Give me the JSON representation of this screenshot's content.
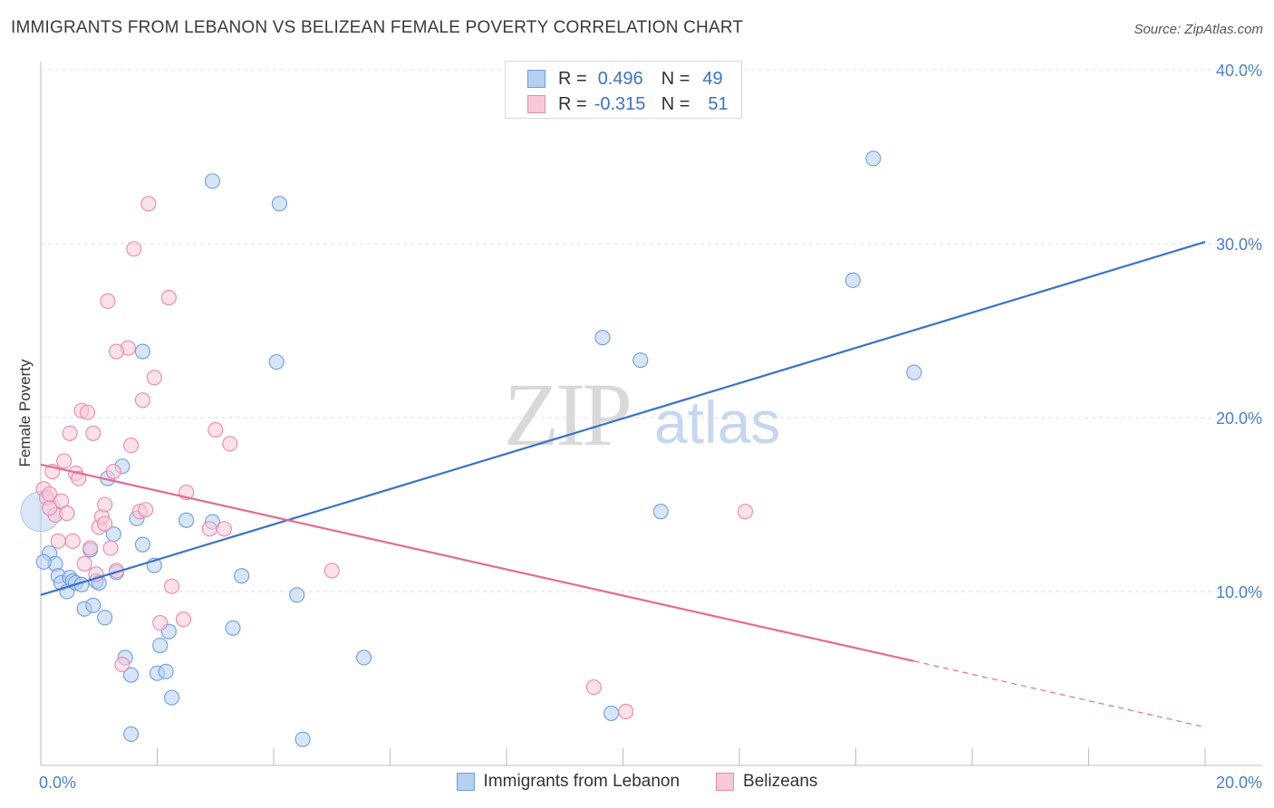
{
  "title": "IMMIGRANTS FROM LEBANON VS BELIZEAN FEMALE POVERTY CORRELATION CHART",
  "source": "Source: ZipAtlas.com",
  "watermark": {
    "zip": "ZIP",
    "atlas": "atlas"
  },
  "legend": {
    "rows": [
      {
        "r_label": "R =",
        "r_value": "0.496",
        "n_label": "N =",
        "n_value": "49",
        "color": "#a9c8f0",
        "border": "#6d9ede"
      },
      {
        "r_label": "R =",
        "r_value": "-0.315",
        "n_label": "N =",
        "n_value": "51",
        "color": "#f7c0d2",
        "border": "#e98aaa"
      }
    ]
  },
  "chart_data": {
    "type": "scatter",
    "title": "IMMIGRANTS FROM LEBANON VS BELIZEAN FEMALE POVERTY CORRELATION CHART",
    "xlabel": "",
    "ylabel": "Female Poverty",
    "xlim": [
      0,
      20
    ],
    "ylim": [
      0,
      40
    ],
    "x_tick_labels": [
      "0.0%",
      "20.0%"
    ],
    "y_ticks": [
      10,
      20,
      30,
      40
    ],
    "y_tick_labels": [
      "10.0%",
      "20.0%",
      "30.0%",
      "40.0%"
    ],
    "series": [
      {
        "name": "Immigrants from Lebanon",
        "color": "#6d9ede",
        "fill": "#b6d0f2",
        "trend": {
          "x0": 0,
          "y0": 9.8,
          "x1": 20,
          "y1": 30.1,
          "color": "#3a72c9"
        },
        "points": [
          [
            0.15,
            12.2
          ],
          [
            0.25,
            11.6
          ],
          [
            0.3,
            10.9
          ],
          [
            0.35,
            10.5
          ],
          [
            0.45,
            10.0
          ],
          [
            0.5,
            10.8
          ],
          [
            0.55,
            10.6
          ],
          [
            0.6,
            10.5
          ],
          [
            0.7,
            10.4
          ],
          [
            0.75,
            9.0
          ],
          [
            0.85,
            12.4
          ],
          [
            0.9,
            9.2
          ],
          [
            0.95,
            10.6
          ],
          [
            1.0,
            10.5
          ],
          [
            1.1,
            8.5
          ],
          [
            1.15,
            16.5
          ],
          [
            1.25,
            13.3
          ],
          [
            1.3,
            11.1
          ],
          [
            1.4,
            17.2
          ],
          [
            1.45,
            6.2
          ],
          [
            1.55,
            5.2
          ],
          [
            1.65,
            14.2
          ],
          [
            1.75,
            12.7
          ],
          [
            1.75,
            23.8
          ],
          [
            1.95,
            11.5
          ],
          [
            2.0,
            5.3
          ],
          [
            2.05,
            6.9
          ],
          [
            2.15,
            5.4
          ],
          [
            2.2,
            7.7
          ],
          [
            2.25,
            3.9
          ],
          [
            2.5,
            14.1
          ],
          [
            2.95,
            33.6
          ],
          [
            2.95,
            14.0
          ],
          [
            3.3,
            7.9
          ],
          [
            3.45,
            10.9
          ],
          [
            4.05,
            23.2
          ],
          [
            4.1,
            32.3
          ],
          [
            4.4,
            9.8
          ],
          [
            4.5,
            1.5
          ],
          [
            5.55,
            6.2
          ],
          [
            9.65,
            24.6
          ],
          [
            9.8,
            3.0
          ],
          [
            10.3,
            23.3
          ],
          [
            10.65,
            14.6
          ],
          [
            13.95,
            27.9
          ],
          [
            14.3,
            34.9
          ],
          [
            15.0,
            22.6
          ],
          [
            1.55,
            1.8
          ],
          [
            0.05,
            11.7
          ]
        ]
      },
      {
        "name": "Belizeans",
        "color": "#e98aaa",
        "fill": "#f8c8d8",
        "trend": {
          "x0": 0,
          "y0": 17.3,
          "x1": 15.0,
          "y1": 6.0,
          "x2": 20,
          "y2": 2.2,
          "color": "#e46a95"
        },
        "points": [
          [
            0.05,
            15.9
          ],
          [
            0.1,
            15.4
          ],
          [
            0.15,
            15.6
          ],
          [
            0.2,
            16.9
          ],
          [
            0.25,
            14.4
          ],
          [
            0.3,
            12.9
          ],
          [
            0.35,
            15.2
          ],
          [
            0.4,
            17.5
          ],
          [
            0.45,
            14.5
          ],
          [
            0.5,
            19.1
          ],
          [
            0.55,
            12.9
          ],
          [
            0.6,
            16.8
          ],
          [
            0.65,
            16.5
          ],
          [
            0.7,
            20.4
          ],
          [
            0.75,
            11.6
          ],
          [
            0.8,
            20.3
          ],
          [
            0.85,
            12.5
          ],
          [
            0.9,
            19.1
          ],
          [
            0.95,
            11.0
          ],
          [
            1.0,
            13.7
          ],
          [
            1.05,
            14.3
          ],
          [
            1.1,
            15.0
          ],
          [
            1.15,
            26.7
          ],
          [
            1.2,
            12.5
          ],
          [
            1.25,
            16.9
          ],
          [
            1.3,
            11.2
          ],
          [
            1.4,
            5.8
          ],
          [
            1.5,
            24.0
          ],
          [
            1.55,
            18.4
          ],
          [
            1.6,
            29.7
          ],
          [
            1.7,
            14.6
          ],
          [
            1.75,
            21.0
          ],
          [
            1.8,
            14.7
          ],
          [
            1.85,
            32.3
          ],
          [
            1.95,
            22.3
          ],
          [
            2.05,
            8.2
          ],
          [
            2.2,
            26.9
          ],
          [
            2.25,
            10.3
          ],
          [
            2.45,
            8.4
          ],
          [
            2.5,
            15.7
          ],
          [
            2.9,
            13.6
          ],
          [
            3.0,
            19.3
          ],
          [
            3.15,
            13.6
          ],
          [
            3.25,
            18.5
          ],
          [
            5.0,
            11.2
          ],
          [
            9.5,
            4.5
          ],
          [
            10.05,
            3.1
          ],
          [
            12.1,
            14.6
          ],
          [
            1.1,
            13.9
          ],
          [
            1.3,
            23.8
          ],
          [
            0.15,
            14.8
          ]
        ]
      }
    ]
  }
}
